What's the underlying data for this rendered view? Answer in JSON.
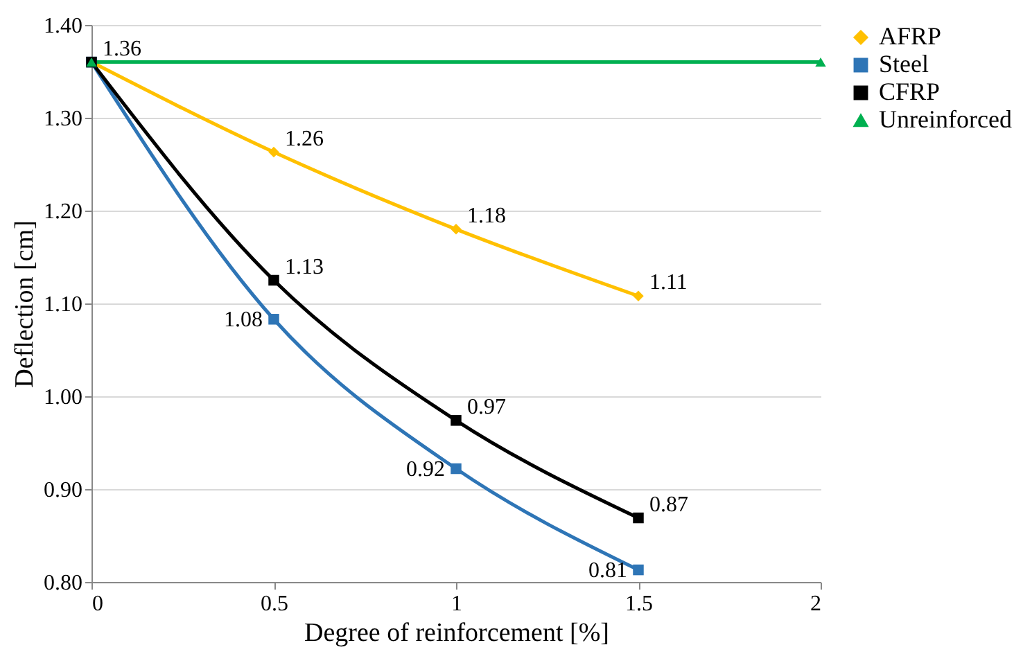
{
  "chart_data": {
    "type": "line",
    "xlabel": "Degree of reinforcement [%]",
    "ylabel": "Deflection [cm]",
    "xlim": [
      0,
      2
    ],
    "xticks": [
      0,
      0.5,
      1,
      1.5,
      2
    ],
    "ylim": [
      0.8,
      1.4
    ],
    "yticks": [
      {
        "value": 0.8,
        "label": "0.80"
      },
      {
        "value": 0.9,
        "label": "0.90"
      },
      {
        "value": 1.0,
        "label": "1.00"
      },
      {
        "value": 1.1,
        "label": "1.10"
      },
      {
        "value": 1.2,
        "label": "1.20"
      },
      {
        "value": 1.3,
        "label": "1.30"
      },
      {
        "value": 1.4,
        "label": "1.40"
      }
    ],
    "grid": "y",
    "legend": "right",
    "line_style": "solid",
    "series": [
      {
        "name": "AFRP",
        "color": "#ffc000",
        "marker": "diamond",
        "x": [
          0,
          0.5,
          1,
          1.5
        ],
        "values": [
          1.36,
          1.263,
          1.18,
          1.108
        ],
        "value_labels": [
          null,
          "1.26",
          "1.18",
          "1.11"
        ]
      },
      {
        "name": "Steel",
        "color": "#2e75b6",
        "marker": "square",
        "x": [
          0,
          0.5,
          1,
          1.5
        ],
        "values": [
          1.36,
          1.083,
          0.922,
          0.813
        ],
        "value_labels": [
          null,
          "1.08",
          "0.92",
          "0.81"
        ]
      },
      {
        "name": "CFRP",
        "color": "#000000",
        "marker": "square",
        "x": [
          0,
          0.5,
          1,
          1.5
        ],
        "values": [
          1.36,
          1.125,
          0.974,
          0.869
        ],
        "value_labels": [
          null,
          "1.13",
          "0.97",
          "0.87"
        ]
      },
      {
        "name": "Unreinforced",
        "color": "#00b050",
        "marker": "triangle",
        "x": [
          0,
          2
        ],
        "values": [
          1.36,
          1.36
        ],
        "value_labels": [
          "1.36",
          null
        ]
      }
    ]
  }
}
